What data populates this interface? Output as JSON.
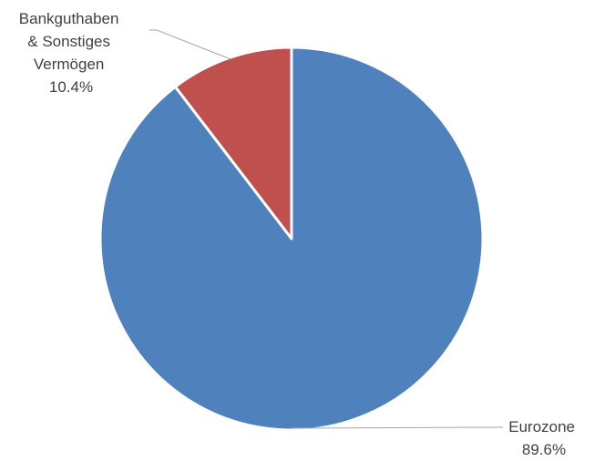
{
  "chart_data": {
    "type": "pie",
    "slices": [
      {
        "name_lines": [
          "Bankguthaben",
          "& Sonstiges",
          "Vermögen"
        ],
        "value": 10.4,
        "label": "10.4%",
        "color": "#c0504d"
      },
      {
        "name_lines": [
          "Eurozone"
        ],
        "value": 89.6,
        "label": "89.6%",
        "color": "#4f81bd"
      }
    ],
    "start_angle_deg": 0,
    "direction": "counterclockwise",
    "legend": "none",
    "label_style": "outside with leader lines"
  }
}
